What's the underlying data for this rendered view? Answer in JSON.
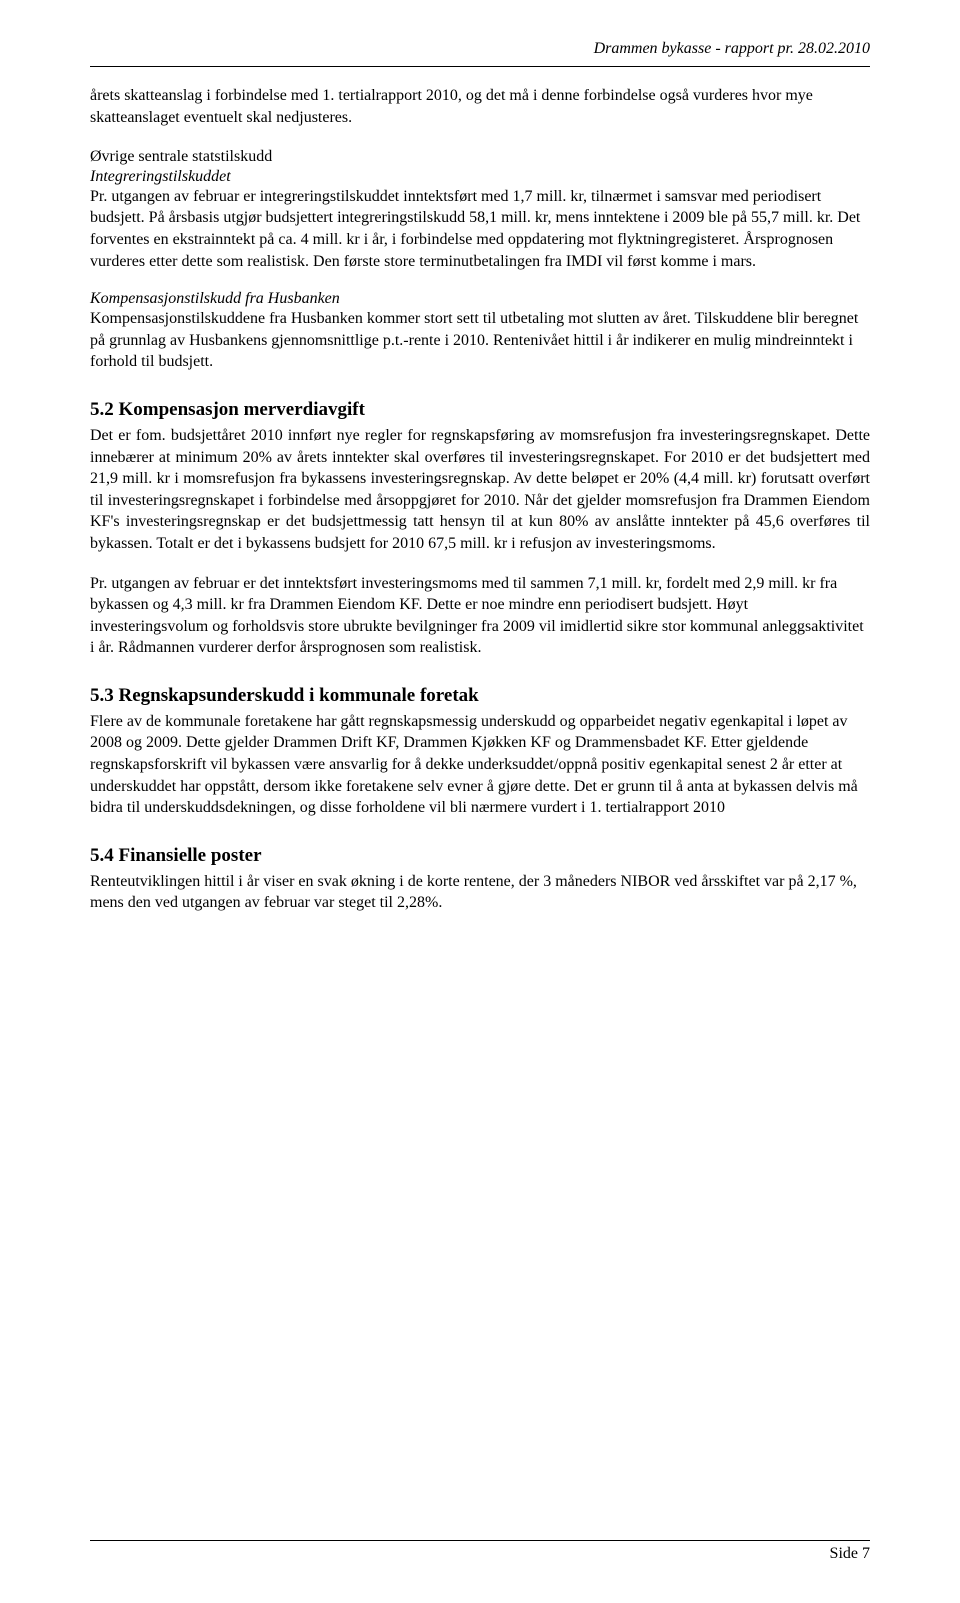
{
  "document": {
    "header_text": "Drammen bykasse - rapport pr. 28.02.2010",
    "footer_text": "Side 7",
    "font_family": "Times New Roman",
    "body_fontsize_pt": 12,
    "heading_fontsize_pt": 14,
    "text_color": "#000000",
    "background_color": "#ffffff",
    "rule_color": "#000000"
  },
  "paragraphs": {
    "p1": "årets skatteanslag i forbindelse med 1. tertialrapport 2010, og det må i denne forbindelse også vurderes hvor mye skatteanslaget eventuelt skal nedjusteres.",
    "p2_heading": "Øvrige sentrale statstilskudd",
    "p2_sub_italic": "Integreringstilskuddet",
    "p2_body": "Pr. utgangen av februar er integreringstilskuddet inntektsført med 1,7 mill. kr, tilnærmet i samsvar med periodisert budsjett. På årsbasis utgjør budsjettert integreringstilskudd 58,1 mill. kr, mens inntektene i 2009 ble på 55,7 mill. kr. Det forventes en ekstrainntekt på ca. 4 mill. kr i år, i forbindelse med oppdatering mot flyktningregisteret. Årsprognosen vurderes etter dette som realistisk. Den første store terminutbetalingen fra IMDI vil først komme i mars.",
    "p3_sub_italic": "Kompensasjonstilskudd fra Husbanken",
    "p3_body": "Kompensasjonstilskuddene fra Husbanken kommer stort sett til utbetaling mot slutten av året. Tilskuddene blir beregnet på grunnlag av Husbankens gjennomsnittlige p.t.-rente i 2010. Rentenivået hittil i år indikerer en mulig mindreinntekt i forhold til budsjett.",
    "s52_title": "5.2 Kompensasjon merverdiavgift",
    "s52_body1": "Det er fom. budsjettåret 2010 innført nye regler for regnskapsføring av momsrefusjon fra investeringsregnskapet. Dette innebærer at minimum 20% av årets inntekter skal overføres til investeringsregnskapet. For 2010 er det budsjettert med 21,9 mill. kr i momsrefusjon fra bykassens investeringsregnskap. Av dette beløpet er 20% (4,4 mill. kr) forutsatt overført til investeringsregnskapet i forbindelse med årsoppgjøret for 2010. Når det gjelder momsrefusjon fra Drammen Eiendom KF's investeringsregnskap er det budsjettmessig tatt hensyn til at kun 80% av anslåtte inntekter på 45,6 overføres til bykassen. Totalt er det i bykassens budsjett for 2010 67,5 mill. kr i refusjon av investeringsmoms.",
    "s52_body2": "Pr. utgangen av februar er det inntektsført investeringsmoms med til sammen 7,1 mill. kr, fordelt med 2,9 mill. kr fra bykassen og 4,3 mill. kr fra Drammen Eiendom KF. Dette er noe mindre enn periodisert budsjett. Høyt investeringsvolum og forholdsvis store ubrukte bevilgninger fra 2009 vil imidlertid sikre stor kommunal anleggsaktivitet i år. Rådmannen vurderer derfor årsprognosen som realistisk.",
    "s53_title": "5.3 Regnskapsunderskudd i kommunale foretak",
    "s53_body": "Flere av de kommunale foretakene har gått regnskapsmessig underskudd og opparbeidet negativ egenkapital i løpet av 2008 og 2009. Dette gjelder Drammen Drift KF, Drammen Kjøkken KF og Drammensbadet KF. Etter gjeldende regnskapsforskrift vil bykassen være ansvarlig for å dekke underksuddet/oppnå positiv egenkapital senest 2 år etter at underskuddet har oppstått, dersom ikke foretakene selv evner å gjøre dette. Det er grunn til å anta at bykassen delvis må bidra til underskuddsdekningen, og disse forholdene vil bli nærmere vurdert i 1. tertialrapport 2010",
    "s54_title": "5.4 Finansielle poster",
    "s54_body": "Renteutviklingen hittil i år viser en svak økning i de korte rentene, der 3 måneders NIBOR ved årsskiftet var på 2,17 %, mens den ved utgangen av februar var steget til 2,28%."
  }
}
